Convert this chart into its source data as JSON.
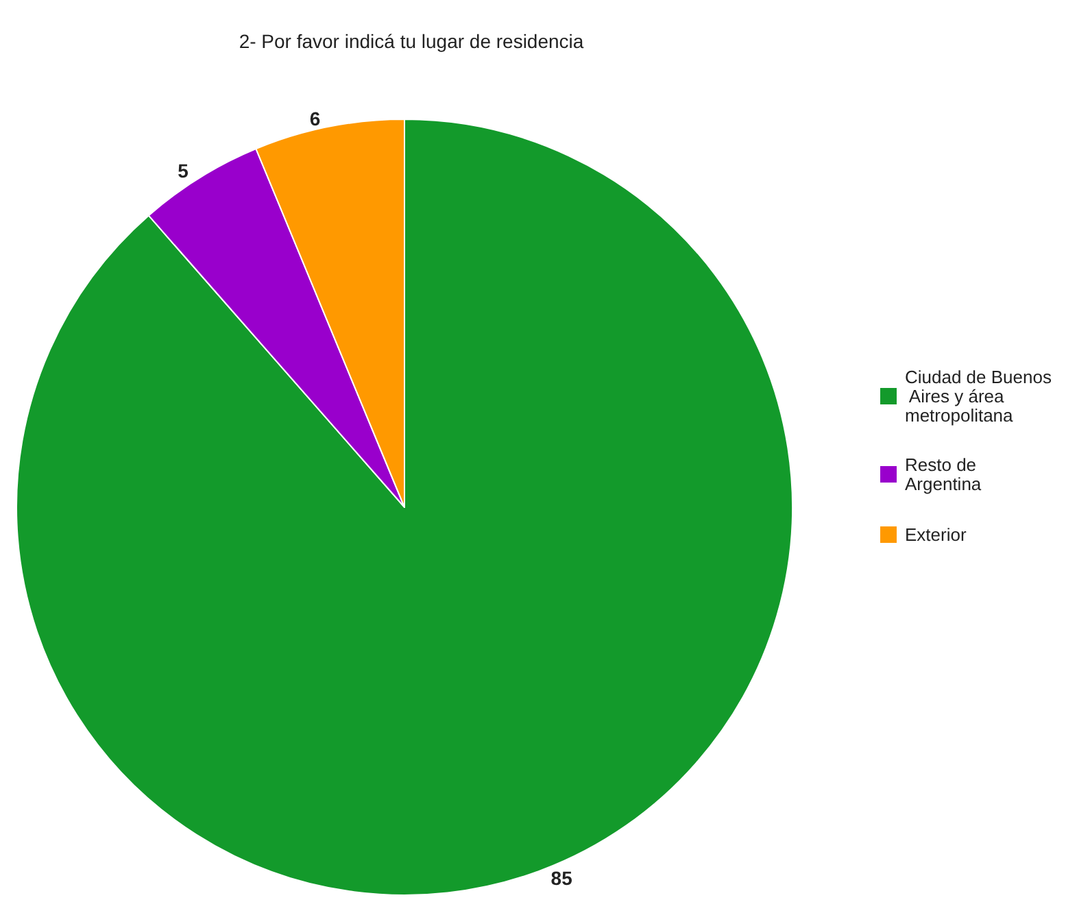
{
  "chart_data": {
    "type": "pie",
    "title": "2- Por favor indicá tu lugar de residencia",
    "categories": [
      "Ciudad de Buenos Aires y área metropolitana",
      "Resto de Argentina",
      "Exterior"
    ],
    "values": [
      85,
      5,
      6
    ],
    "colors": [
      "#139a2b",
      "#9900cc",
      "#ff9900"
    ],
    "data_labels": true,
    "legend": "right"
  }
}
